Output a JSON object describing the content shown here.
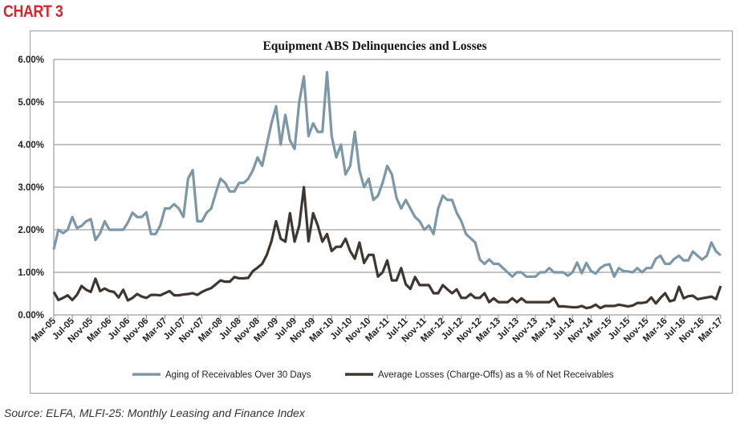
{
  "header": "CHART 3",
  "source": "Source: ELFA, MLFI-25: Monthly Leasing and Finance Index",
  "chart_data": {
    "type": "line",
    "title": "Equipment ABS Delinquencies and Losses",
    "xlabel": "",
    "ylabel": "",
    "x_start": "Mar-05",
    "x_end": "Mar-17",
    "x_frequency": "monthly",
    "x_ticks": [
      "Mar-05",
      "Jul-05",
      "Nov-05",
      "Mar-06",
      "Jul-06",
      "Nov-06",
      "Mar-07",
      "Jul-07",
      "Nov-07",
      "Mar-08",
      "Jul-08",
      "Nov-08",
      "Mar-09",
      "Jul-09",
      "Nov-09",
      "Mar-10",
      "Jul-10",
      "Nov-10",
      "Mar-11",
      "Jul-11",
      "Nov-11",
      "Mar-12",
      "Jul-12",
      "Nov-12",
      "Mar-13",
      "Jul-13",
      "Nov-13",
      "Mar-14",
      "Jul-14",
      "Nov-14",
      "Mar-15",
      "Jul-15",
      "Nov-15",
      "Mar-16",
      "Jul-16",
      "Nov-16",
      "Mar-17"
    ],
    "y_ticks": [
      "0.00%",
      "1.00%",
      "2.00%",
      "3.00%",
      "4.00%",
      "5.00%",
      "6.00%"
    ],
    "ylim": [
      0,
      6
    ],
    "grid": true,
    "legend_position": "bottom",
    "series": [
      {
        "name": "Aging of Receivables Over 30 Days",
        "color": "#7b97a8",
        "values": [
          1.54,
          2.0,
          1.92,
          2.0,
          2.3,
          2.04,
          2.09,
          2.2,
          2.25,
          1.76,
          1.92,
          2.2,
          2.0,
          2.0,
          2.0,
          2.0,
          2.17,
          2.4,
          2.3,
          2.3,
          2.41,
          1.9,
          1.9,
          2.1,
          2.5,
          2.5,
          2.6,
          2.5,
          2.3,
          3.2,
          3.4,
          2.2,
          2.2,
          2.4,
          2.5,
          2.87,
          3.2,
          3.1,
          2.9,
          2.9,
          3.1,
          3.1,
          3.2,
          3.4,
          3.7,
          3.5,
          4.0,
          4.5,
          4.9,
          4.0,
          4.7,
          4.1,
          3.9,
          5.0,
          5.6,
          4.2,
          4.5,
          4.3,
          4.3,
          5.7,
          4.2,
          3.7,
          4.0,
          3.3,
          3.5,
          4.3,
          3.4,
          3.0,
          3.2,
          2.7,
          2.8,
          3.1,
          3.5,
          3.3,
          2.75,
          2.5,
          2.7,
          2.5,
          2.3,
          2.2,
          2.0,
          2.1,
          1.9,
          2.5,
          2.8,
          2.7,
          2.7,
          2.4,
          2.2,
          1.9,
          1.8,
          1.7,
          1.3,
          1.2,
          1.3,
          1.2,
          1.2,
          1.1,
          1.0,
          0.9,
          1.0,
          1.0,
          0.9,
          0.9,
          0.9,
          1.0,
          1.0,
          1.1,
          1.0,
          1.0,
          1.0,
          0.92,
          1.0,
          1.23,
          0.98,
          1.22,
          1.03,
          0.97,
          1.1,
          1.17,
          1.19,
          0.9,
          1.1,
          1.03,
          1.02,
          1.0,
          1.1,
          1.0,
          1.1,
          1.1,
          1.32,
          1.39,
          1.2,
          1.2,
          1.32,
          1.39,
          1.28,
          1.28,
          1.49,
          1.39,
          1.3,
          1.39,
          1.7,
          1.49,
          1.4
        ]
      },
      {
        "name": "Average Losses (Charge-Offs) as a % of Net Receivables",
        "color": "#3f3630",
        "values": [
          0.54,
          0.35,
          0.4,
          0.46,
          0.35,
          0.47,
          0.68,
          0.59,
          0.54,
          0.85,
          0.56,
          0.62,
          0.56,
          0.54,
          0.41,
          0.59,
          0.34,
          0.4,
          0.49,
          0.43,
          0.4,
          0.47,
          0.47,
          0.46,
          0.51,
          0.56,
          0.46,
          0.46,
          0.48,
          0.49,
          0.51,
          0.47,
          0.54,
          0.59,
          0.63,
          0.72,
          0.81,
          0.78,
          0.78,
          0.89,
          0.86,
          0.86,
          0.87,
          1.03,
          1.11,
          1.2,
          1.41,
          1.73,
          2.2,
          1.79,
          1.72,
          2.39,
          1.72,
          2.1,
          3.0,
          1.73,
          2.39,
          2.1,
          1.72,
          1.9,
          1.5,
          1.6,
          1.6,
          1.79,
          1.5,
          1.32,
          1.7,
          1.22,
          1.41,
          1.41,
          0.9,
          1.0,
          1.28,
          0.81,
          0.81,
          1.1,
          0.72,
          0.61,
          0.89,
          0.7,
          0.7,
          0.7,
          0.51,
          0.51,
          0.7,
          0.6,
          0.51,
          0.6,
          0.4,
          0.4,
          0.49,
          0.4,
          0.4,
          0.51,
          0.3,
          0.39,
          0.3,
          0.3,
          0.3,
          0.39,
          0.3,
          0.39,
          0.3,
          0.3,
          0.3,
          0.3,
          0.3,
          0.3,
          0.39,
          0.2,
          0.2,
          0.19,
          0.18,
          0.18,
          0.21,
          0.16,
          0.18,
          0.24,
          0.16,
          0.21,
          0.21,
          0.21,
          0.24,
          0.22,
          0.2,
          0.22,
          0.28,
          0.28,
          0.3,
          0.41,
          0.27,
          0.4,
          0.51,
          0.32,
          0.35,
          0.66,
          0.39,
          0.44,
          0.45,
          0.37,
          0.39,
          0.41,
          0.43,
          0.37,
          0.68
        ]
      }
    ]
  }
}
